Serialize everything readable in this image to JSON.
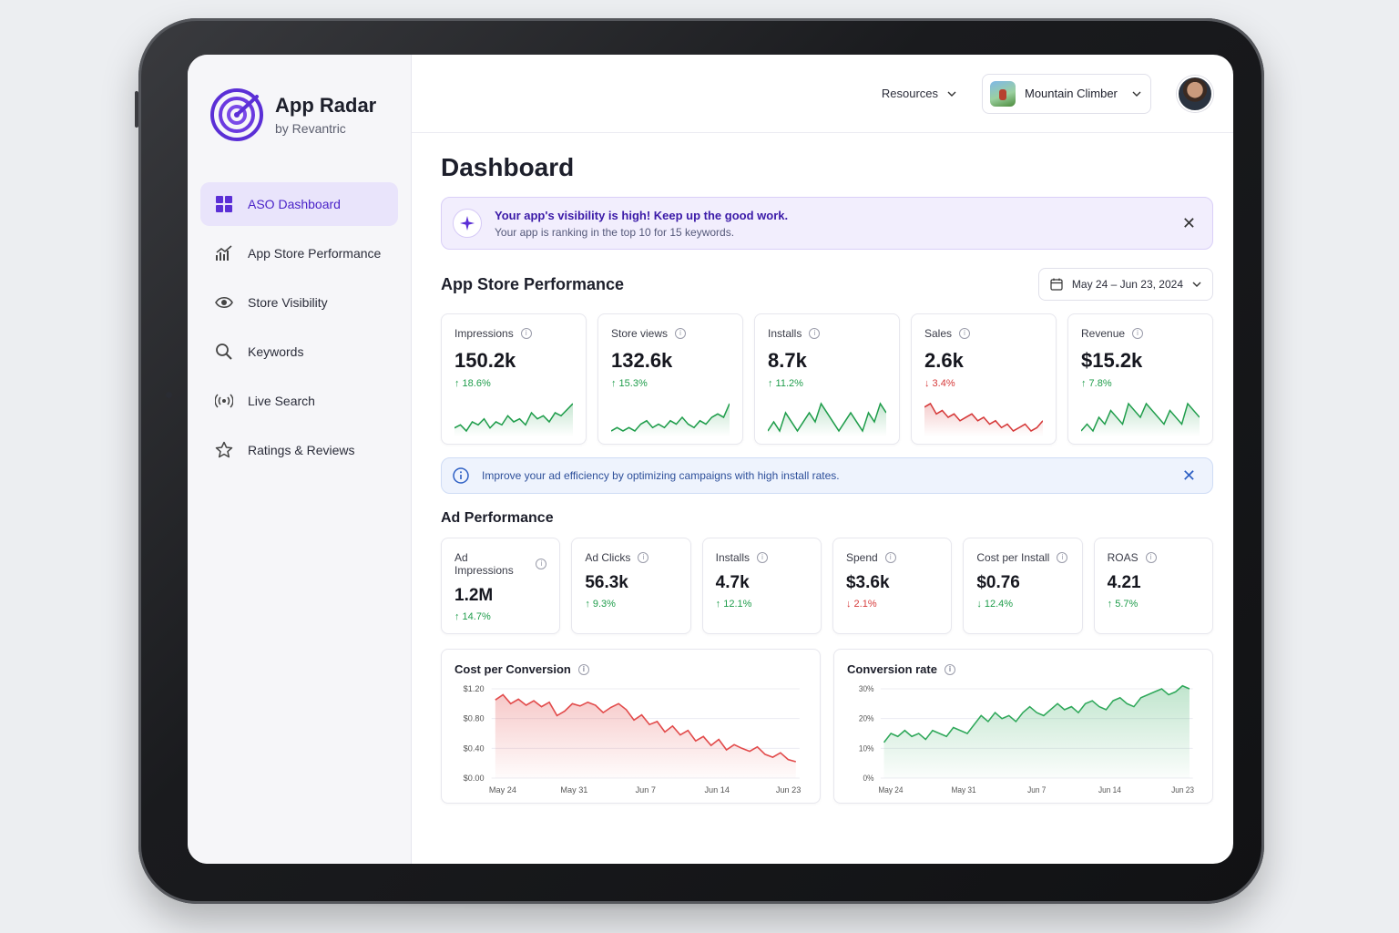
{
  "brand": {
    "name": "App Radar",
    "sub": "by Revantric"
  },
  "sidebar": {
    "items": [
      {
        "label": "ASO Dashboard",
        "icon": "grid-icon",
        "active": true
      },
      {
        "label": "App Store Performance",
        "icon": "chart-trend-icon"
      },
      {
        "label": "Store Visibility",
        "icon": "eye-icon"
      },
      {
        "label": "Keywords",
        "icon": "search-icon"
      },
      {
        "label": "Live Search",
        "icon": "broadcast-icon"
      },
      {
        "label": "Ratings & Reviews",
        "icon": "star-icon"
      }
    ]
  },
  "topbar": {
    "resources": "Resources",
    "app_name": "Mountain Climber"
  },
  "page_title": "Dashboard",
  "visibility_banner": {
    "title": "Your app's visibility is high! Keep up the good work.",
    "subtitle": "Your app is ranking in the top 10 for 15 keywords."
  },
  "store_section": {
    "title": "App Store Performance",
    "date_range": "May 24 – Jun 23, 2024",
    "kpis": [
      {
        "label": "Impressions",
        "value": "150.2k",
        "change": "↑ 18.6%",
        "trend": "up",
        "spark": [
          4,
          5,
          3,
          6,
          5,
          7,
          4,
          6,
          5,
          8,
          6,
          7,
          5,
          9,
          7,
          8,
          6,
          9,
          8,
          10,
          12
        ]
      },
      {
        "label": "Store views",
        "value": "132.6k",
        "change": "↑ 15.3%",
        "trend": "up",
        "spark": [
          4,
          5,
          4,
          5,
          4,
          6,
          7,
          5,
          6,
          5,
          7,
          6,
          8,
          6,
          5,
          7,
          6,
          8,
          9,
          8,
          12
        ]
      },
      {
        "label": "Installs",
        "value": "8.7k",
        "change": "↑ 11.2%",
        "trend": "up",
        "spark": [
          5,
          6,
          5,
          7,
          6,
          5,
          6,
          7,
          6,
          8,
          7,
          6,
          5,
          6,
          7,
          6,
          5,
          7,
          6,
          8,
          7
        ]
      },
      {
        "label": "Sales",
        "value": "2.6k",
        "change": "↓ 3.4%",
        "trend": "down",
        "spark": [
          10,
          11,
          8,
          9,
          7,
          8,
          6,
          7,
          8,
          6,
          7,
          5,
          6,
          4,
          5,
          3,
          4,
          5,
          3,
          4,
          6
        ]
      },
      {
        "label": "Revenue",
        "value": "$15.2k",
        "change": "↑ 7.8%",
        "trend": "up",
        "spark": [
          4,
          5,
          4,
          6,
          5,
          7,
          6,
          5,
          8,
          7,
          6,
          8,
          7,
          6,
          5,
          7,
          6,
          5,
          8,
          7,
          6
        ]
      }
    ]
  },
  "info_banner": {
    "text": "Improve your ad efficiency by optimizing campaigns with high install rates."
  },
  "ad_section": {
    "title": "Ad Performance",
    "kpis": [
      {
        "label": "Ad Impressions",
        "value": "1.2M",
        "change": "↑ 14.7%",
        "trend": "up"
      },
      {
        "label": "Ad Clicks",
        "value": "56.3k",
        "change": "↑ 9.3%",
        "trend": "up"
      },
      {
        "label": "Installs",
        "value": "4.7k",
        "change": "↑ 12.1%",
        "trend": "up"
      },
      {
        "label": "Spend",
        "value": "$3.6k",
        "change": "↓ 2.1%",
        "trend": "down"
      },
      {
        "label": "Cost per Install",
        "value": "$0.76",
        "change": "↓ 12.4%",
        "trend": "up"
      },
      {
        "label": "ROAS",
        "value": "4.21",
        "change": "↑ 5.7%",
        "trend": "up"
      }
    ]
  },
  "colors": {
    "accent": "#5b2fd6",
    "up": "#1f9d4b",
    "down": "#d63a3a"
  },
  "chart_data": [
    {
      "type": "area",
      "title": "Cost per Conversion",
      "x_ticks": [
        "May 24",
        "May 31",
        "Jun 7",
        "Jun 14",
        "Jun 23"
      ],
      "y_ticks": [
        "$1.20",
        "$0.80",
        "$0.40",
        "$0.00"
      ],
      "ylim": [
        0,
        1.2
      ],
      "color": "#e24b4b",
      "values": [
        1.05,
        1.12,
        1.0,
        1.06,
        0.98,
        1.04,
        0.96,
        1.02,
        0.84,
        0.9,
        1.0,
        0.97,
        1.02,
        0.98,
        0.88,
        0.95,
        1.0,
        0.92,
        0.78,
        0.85,
        0.72,
        0.76,
        0.62,
        0.7,
        0.58,
        0.64,
        0.5,
        0.56,
        0.44,
        0.52,
        0.38,
        0.45,
        0.4,
        0.36,
        0.42,
        0.32,
        0.28,
        0.34,
        0.25,
        0.22
      ]
    },
    {
      "type": "area",
      "title": "Conversion rate",
      "x_ticks": [
        "May 24",
        "May 31",
        "Jun 7",
        "Jun 14",
        "Jun 23"
      ],
      "y_ticks": [
        "30%",
        "20%",
        "10%",
        "0%"
      ],
      "ylim": [
        0,
        30
      ],
      "color": "#2fa85a",
      "values": [
        12,
        15,
        14,
        16,
        14,
        15,
        13,
        16,
        15,
        14,
        17,
        16,
        15,
        18,
        21,
        19,
        22,
        20,
        21,
        19,
        22,
        24,
        22,
        21,
        23,
        25,
        23,
        24,
        22,
        25,
        26,
        24,
        23,
        26,
        27,
        25,
        24,
        27,
        28,
        29,
        30,
        28,
        29,
        31,
        30
      ]
    }
  ]
}
